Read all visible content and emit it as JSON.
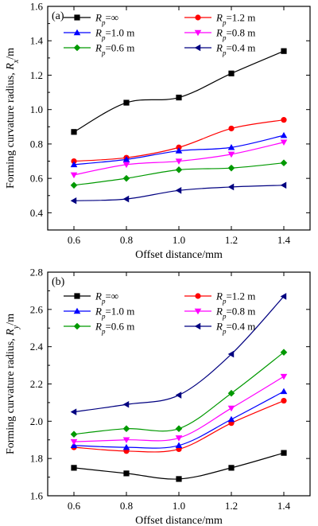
{
  "chart_data": [
    {
      "type": "line",
      "panel_label": "(a)",
      "xlabel": "Offset distance/mm",
      "ylabel": {
        "prefix": "Forming curvature radius, ",
        "var": "R",
        "sub": "x",
        "suffix": "/m"
      },
      "x": [
        0.6,
        0.8,
        1.0,
        1.2,
        1.4
      ],
      "xlim": [
        0.5,
        1.5
      ],
      "ylim": [
        0.3,
        1.6
      ],
      "xticks": [
        "0.6",
        "0.8",
        "1.0",
        "1.2",
        "1.4"
      ],
      "yticks": [
        "0.4",
        "0.6",
        "0.8",
        "1.0",
        "1.2",
        "1.4",
        "1.6"
      ],
      "grid": false,
      "legend_position": "top",
      "series": [
        {
          "name": {
            "var": "R",
            "sub": "p",
            "rest": "=∞"
          },
          "color": "#000000",
          "marker": "square",
          "values": [
            0.87,
            1.04,
            1.07,
            1.21,
            1.34
          ]
        },
        {
          "name": {
            "var": "R",
            "sub": "p",
            "rest": "=1.2 m"
          },
          "color": "#ff0000",
          "marker": "circle",
          "values": [
            0.7,
            0.72,
            0.78,
            0.89,
            0.94
          ]
        },
        {
          "name": {
            "var": "R",
            "sub": "p",
            "rest": "=1.0 m"
          },
          "color": "#0000ff",
          "marker": "triangle-up",
          "values": [
            0.68,
            0.71,
            0.76,
            0.78,
            0.85
          ]
        },
        {
          "name": {
            "var": "R",
            "sub": "p",
            "rest": "=0.8 m"
          },
          "color": "#ff00ff",
          "marker": "triangle-down",
          "values": [
            0.62,
            0.68,
            0.7,
            0.74,
            0.81
          ]
        },
        {
          "name": {
            "var": "R",
            "sub": "p",
            "rest": "=0.6 m"
          },
          "color": "#009900",
          "marker": "diamond",
          "values": [
            0.56,
            0.6,
            0.65,
            0.66,
            0.69
          ]
        },
        {
          "name": {
            "var": "R",
            "sub": "p",
            "rest": "=0.4 m"
          },
          "color": "#000080",
          "marker": "triangle-left",
          "values": [
            0.47,
            0.48,
            0.53,
            0.55,
            0.56
          ]
        }
      ]
    },
    {
      "type": "line",
      "panel_label": "(b)",
      "xlabel": "Offset distance/mm",
      "ylabel": {
        "prefix": "Forming curvature radius, ",
        "var": "R",
        "sub": "y",
        "suffix": "/m"
      },
      "x": [
        0.6,
        0.8,
        1.0,
        1.2,
        1.4
      ],
      "xlim": [
        0.5,
        1.5
      ],
      "ylim": [
        1.6,
        2.8
      ],
      "xticks": [
        "0.6",
        "0.8",
        "1.0",
        "1.2",
        "1.4"
      ],
      "yticks": [
        "1.6",
        "1.8",
        "2.0",
        "2.2",
        "2.4",
        "2.6",
        "2.8"
      ],
      "grid": false,
      "legend_position": "top",
      "series": [
        {
          "name": {
            "var": "R",
            "sub": "p",
            "rest": "=∞"
          },
          "color": "#000000",
          "marker": "square",
          "values": [
            1.75,
            1.72,
            1.69,
            1.75,
            1.83
          ]
        },
        {
          "name": {
            "var": "R",
            "sub": "p",
            "rest": "=1.2 m"
          },
          "color": "#ff0000",
          "marker": "circle",
          "values": [
            1.86,
            1.84,
            1.85,
            1.99,
            2.11
          ]
        },
        {
          "name": {
            "var": "R",
            "sub": "p",
            "rest": "=1.0 m"
          },
          "color": "#0000ff",
          "marker": "triangle-up",
          "values": [
            1.87,
            1.86,
            1.87,
            2.01,
            2.16
          ]
        },
        {
          "name": {
            "var": "R",
            "sub": "p",
            "rest": "=0.8 m"
          },
          "color": "#ff00ff",
          "marker": "triangle-down",
          "values": [
            1.89,
            1.9,
            1.91,
            2.07,
            2.24
          ]
        },
        {
          "name": {
            "var": "R",
            "sub": "p",
            "rest": "=0.6 m"
          },
          "color": "#009900",
          "marker": "diamond",
          "values": [
            1.93,
            1.96,
            1.96,
            2.15,
            2.37
          ]
        },
        {
          "name": {
            "var": "R",
            "sub": "p",
            "rest": "=0.4 m"
          },
          "color": "#000080",
          "marker": "triangle-left",
          "values": [
            2.05,
            2.09,
            2.14,
            2.36,
            2.67
          ]
        }
      ]
    }
  ]
}
